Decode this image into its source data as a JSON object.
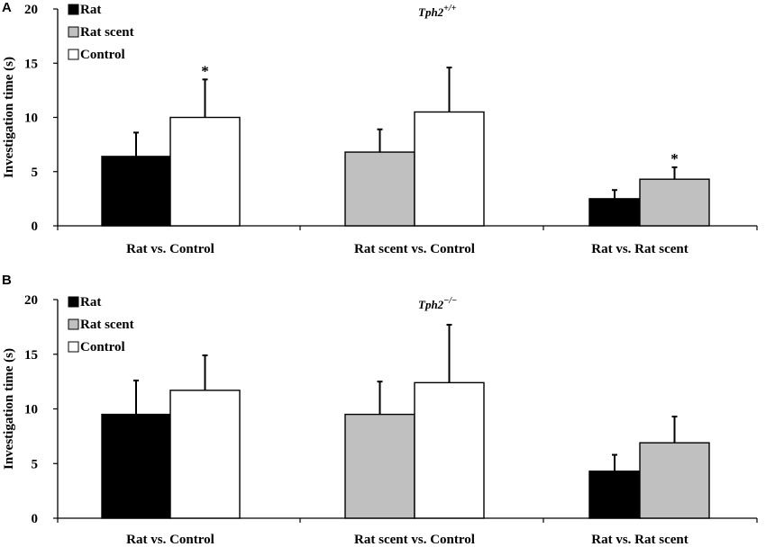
{
  "chart_data": [
    {
      "panel": "A",
      "type": "bar",
      "title_main": "Tph2",
      "title_sup": "+/+",
      "ylabel": "Investigation time (s)",
      "ylim": [
        0,
        20
      ],
      "yticks": [
        0,
        5,
        10,
        15,
        20
      ],
      "legend": [
        {
          "label": "Rat",
          "color": "#000000"
        },
        {
          "label": "Rat scent",
          "color": "#c0c0c0"
        },
        {
          "label": "Control",
          "color": "#ffffff"
        }
      ],
      "groups": [
        {
          "label": "Rat vs. Control",
          "bars": [
            {
              "series": "Rat",
              "color": "#000000",
              "value": 6.4,
              "error": 2.2,
              "star": ""
            },
            {
              "series": "Control",
              "color": "#ffffff",
              "value": 10.0,
              "error": 3.5,
              "star": "*"
            }
          ]
        },
        {
          "label": "Rat scent vs. Control",
          "bars": [
            {
              "series": "Rat scent",
              "color": "#c0c0c0",
              "value": 6.8,
              "error": 2.1,
              "star": ""
            },
            {
              "series": "Control",
              "color": "#ffffff",
              "value": 10.5,
              "error": 4.1,
              "star": ""
            }
          ]
        },
        {
          "label": "Rat vs. Rat scent",
          "bars": [
            {
              "series": "Rat",
              "color": "#000000",
              "value": 2.5,
              "error": 0.8,
              "star": ""
            },
            {
              "series": "Rat scent",
              "color": "#c0c0c0",
              "value": 4.3,
              "error": 1.1,
              "star": "*"
            }
          ]
        }
      ]
    },
    {
      "panel": "B",
      "type": "bar",
      "title_main": "Tph2",
      "title_sup": "−/−",
      "ylabel": "Investigation time (s)",
      "ylim": [
        0,
        20
      ],
      "yticks": [
        0,
        5,
        10,
        15,
        20
      ],
      "legend": [
        {
          "label": "Rat",
          "color": "#000000"
        },
        {
          "label": "Rat scent",
          "color": "#c0c0c0"
        },
        {
          "label": "Control",
          "color": "#ffffff"
        }
      ],
      "groups": [
        {
          "label": "Rat vs. Control",
          "bars": [
            {
              "series": "Rat",
              "color": "#000000",
              "value": 9.5,
              "error": 3.1,
              "star": ""
            },
            {
              "series": "Control",
              "color": "#ffffff",
              "value": 11.7,
              "error": 3.2,
              "star": ""
            }
          ]
        },
        {
          "label": "Rat scent vs. Control",
          "bars": [
            {
              "series": "Rat scent",
              "color": "#c0c0c0",
              "value": 9.5,
              "error": 3.0,
              "star": ""
            },
            {
              "series": "Control",
              "color": "#ffffff",
              "value": 12.4,
              "error": 5.3,
              "star": ""
            }
          ]
        },
        {
          "label": "Rat vs. Rat scent",
          "bars": [
            {
              "series": "Rat",
              "color": "#000000",
              "value": 4.3,
              "error": 1.5,
              "star": ""
            },
            {
              "series": "Rat scent",
              "color": "#c0c0c0",
              "value": 6.9,
              "error": 2.4,
              "star": ""
            }
          ]
        }
      ]
    }
  ]
}
